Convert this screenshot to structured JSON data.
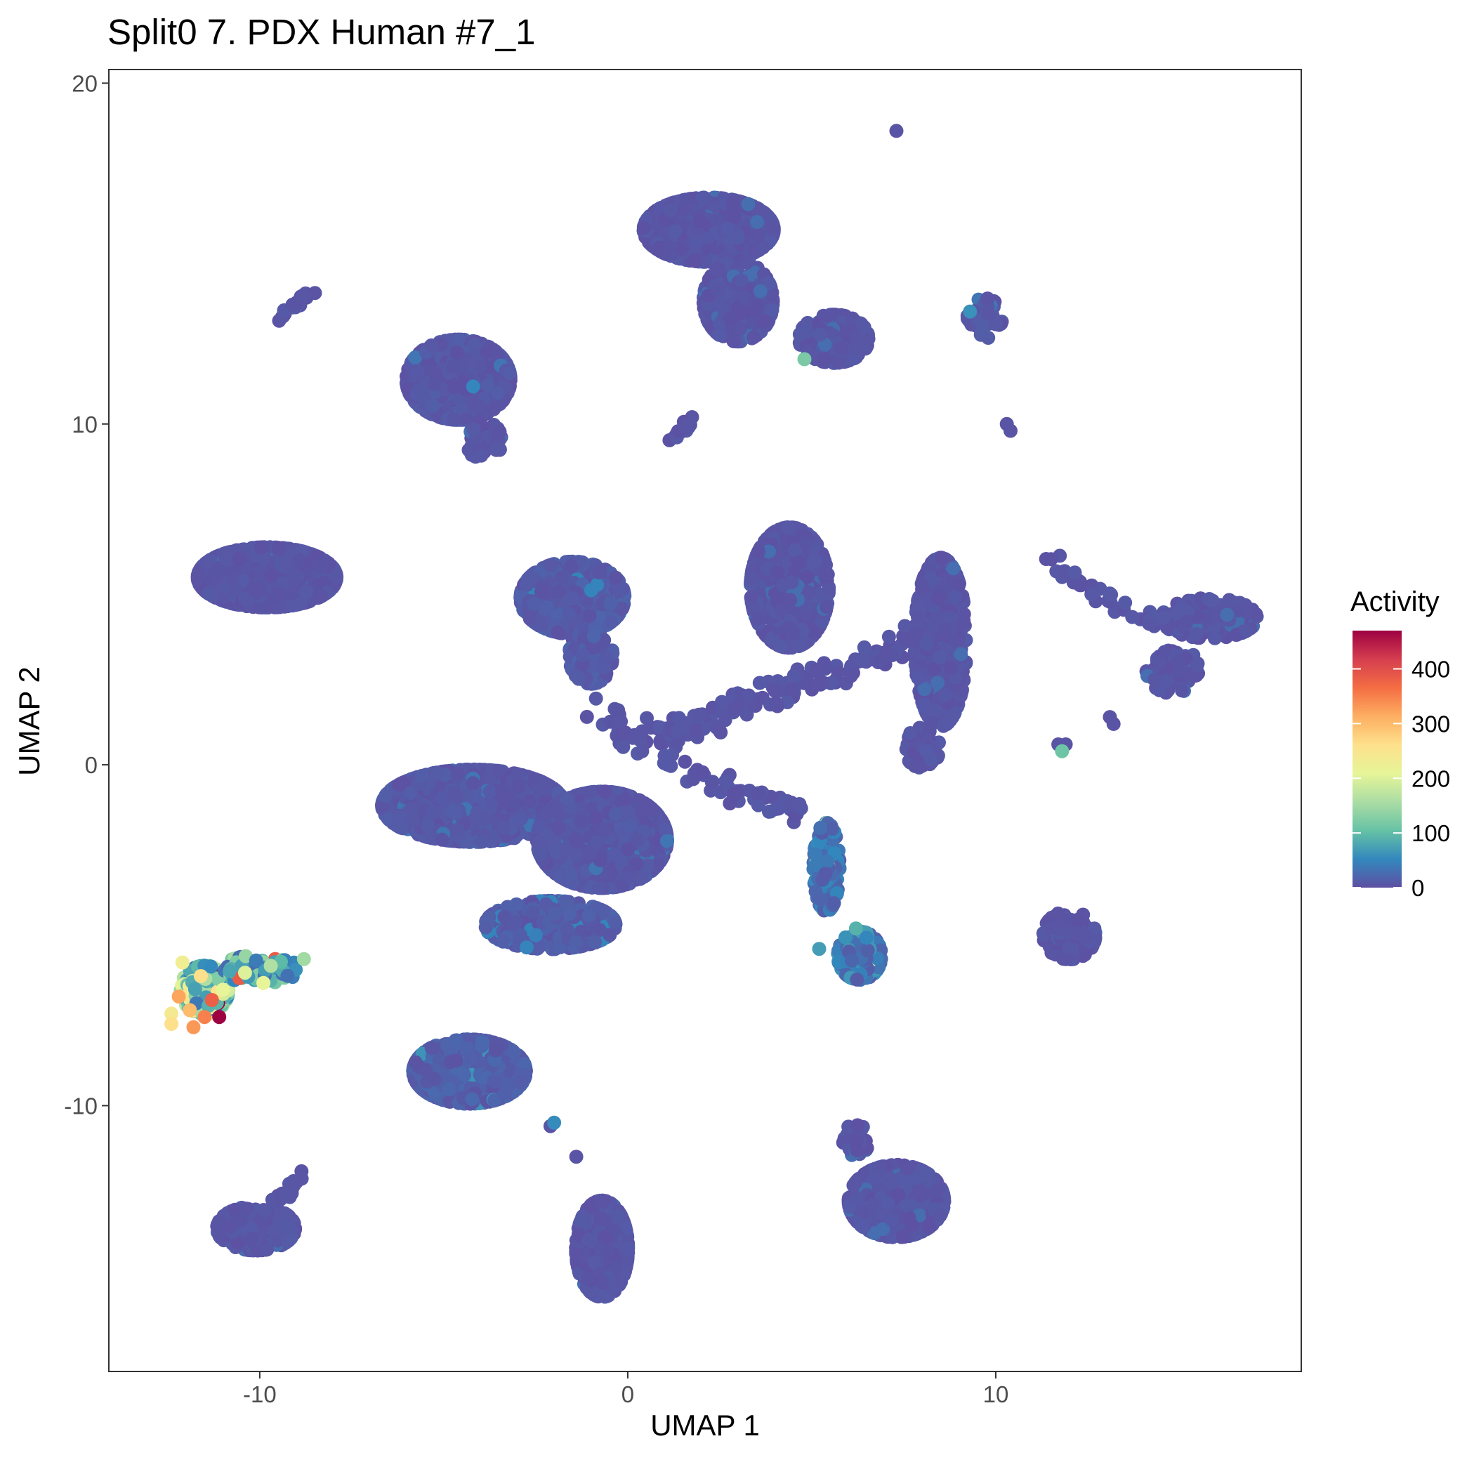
{
  "chart_data": {
    "type": "scatter",
    "title": "Split0 7. PDX Human #7_1",
    "xlabel": "UMAP 1",
    "ylabel": "UMAP 2",
    "xlim": [
      -14.1,
      18.3
    ],
    "ylim": [
      -17.8,
      20.4
    ],
    "x_ticks": [
      -10,
      0,
      10
    ],
    "y_ticks": [
      -10,
      0,
      10,
      20
    ],
    "grid": false,
    "legend": {
      "title": "Activity",
      "position": "right",
      "ticks": [
        0,
        100,
        200,
        300,
        400
      ],
      "range": [
        0,
        470
      ],
      "colorscale": [
        "#5e4fa2",
        "#3288bd",
        "#66c2a5",
        "#abdda4",
        "#e6f598",
        "#fee08b",
        "#fdae61",
        "#f46d43",
        "#d53e4f",
        "#9e0142"
      ]
    },
    "clusters": [
      {
        "x": 2.2,
        "y": 15.7,
        "sx": 1.5,
        "sy": 0.8,
        "n": 950,
        "act": 8
      },
      {
        "x": 3.0,
        "y": 13.6,
        "sx": 0.8,
        "sy": 1.0,
        "n": 300,
        "act": 8
      },
      {
        "x": 5.6,
        "y": 12.5,
        "sx": 0.8,
        "sy": 0.6,
        "n": 260,
        "act": 8
      },
      {
        "x": -4.6,
        "y": 11.3,
        "sx": 1.2,
        "sy": 1.0,
        "n": 650,
        "act": 10
      },
      {
        "x": -3.9,
        "y": 9.5,
        "sx": 0.4,
        "sy": 0.5,
        "n": 50,
        "act": 8
      },
      {
        "x": 9.7,
        "y": 13.1,
        "sx": 0.4,
        "sy": 0.5,
        "n": 55,
        "act": 10
      },
      {
        "x": -9.8,
        "y": 5.5,
        "sx": 1.6,
        "sy": 0.75,
        "n": 850,
        "act": 8
      },
      {
        "x": -1.5,
        "y": 4.9,
        "sx": 1.2,
        "sy": 0.9,
        "n": 600,
        "act": 14
      },
      {
        "x": -1.0,
        "y": 3.2,
        "sx": 0.5,
        "sy": 0.7,
        "n": 140,
        "act": 14
      },
      {
        "x": 4.4,
        "y": 5.2,
        "sx": 0.9,
        "sy": 1.5,
        "n": 560,
        "act": 8
      },
      {
        "x": 8.5,
        "y": 3.6,
        "sx": 0.6,
        "sy": 2.1,
        "n": 520,
        "act": 8
      },
      {
        "x": 8.0,
        "y": 0.5,
        "sx": 0.4,
        "sy": 0.5,
        "n": 80,
        "act": 8
      },
      {
        "x": 15.8,
        "y": 4.3,
        "sx": 1.1,
        "sy": 0.5,
        "n": 180,
        "act": 8
      },
      {
        "x": 14.8,
        "y": 2.8,
        "sx": 0.6,
        "sy": 0.6,
        "n": 80,
        "act": 8
      },
      {
        "x": -4.2,
        "y": -1.2,
        "sx": 2.1,
        "sy": 0.9,
        "n": 1500,
        "act": 10
      },
      {
        "x": -0.7,
        "y": -2.2,
        "sx": 1.5,
        "sy": 1.2,
        "n": 1300,
        "act": 10
      },
      {
        "x": -2.1,
        "y": -4.7,
        "sx": 1.5,
        "sy": 0.6,
        "n": 500,
        "act": 14
      },
      {
        "x": 5.4,
        "y": -3.0,
        "sx": 0.3,
        "sy": 1.1,
        "n": 160,
        "act": 40
      },
      {
        "x": 6.3,
        "y": -5.6,
        "sx": 0.5,
        "sy": 0.6,
        "n": 280,
        "act": 55
      },
      {
        "x": 12.0,
        "y": -5.0,
        "sx": 0.6,
        "sy": 0.6,
        "n": 170,
        "act": 8
      },
      {
        "x": -11.5,
        "y": -6.6,
        "sx": 0.55,
        "sy": 0.6,
        "n": 260,
        "act": 180
      },
      {
        "x": -10.0,
        "y": -6.0,
        "sx": 0.9,
        "sy": 0.35,
        "n": 120,
        "act": 110
      },
      {
        "x": -4.3,
        "y": -9.0,
        "sx": 1.3,
        "sy": 0.8,
        "n": 900,
        "act": 18
      },
      {
        "x": -10.1,
        "y": -13.6,
        "sx": 0.9,
        "sy": 0.55,
        "n": 300,
        "act": 8
      },
      {
        "x": -0.7,
        "y": -14.2,
        "sx": 0.6,
        "sy": 1.2,
        "n": 520,
        "act": 8
      },
      {
        "x": 7.3,
        "y": -12.8,
        "sx": 1.1,
        "sy": 0.9,
        "n": 600,
        "act": 8
      },
      {
        "x": 6.2,
        "y": -11.0,
        "sx": 0.3,
        "sy": 0.4,
        "n": 40,
        "act": 8
      }
    ],
    "paths": [
      {
        "points": [
          [
            -0.7,
            1.4
          ],
          [
            0.5,
            0.7
          ],
          [
            1.8,
            1.2
          ],
          [
            3.3,
            1.8
          ],
          [
            5.2,
            2.6
          ],
          [
            6.9,
            3.2
          ],
          [
            8.2,
            3.9
          ]
        ],
        "n": 170,
        "spread": 0.22,
        "act": 8
      },
      {
        "points": [
          [
            1.0,
            0.3
          ],
          [
            2.5,
            -0.6
          ],
          [
            3.7,
            -1.0
          ],
          [
            4.8,
            -1.4
          ]
        ],
        "n": 60,
        "spread": 0.18,
        "act": 8
      },
      {
        "points": [
          [
            11.4,
            6.1
          ],
          [
            12.8,
            5.0
          ],
          [
            14.2,
            4.2
          ],
          [
            15.2,
            4.3
          ]
        ],
        "n": 60,
        "spread": 0.12,
        "act": 8
      },
      {
        "points": [
          [
            -9.6,
            13.1
          ],
          [
            -9.0,
            13.6
          ],
          [
            -8.6,
            13.9
          ]
        ],
        "n": 22,
        "spread": 0.08,
        "act": 8
      },
      {
        "points": [
          [
            1.2,
            9.5
          ],
          [
            1.6,
            9.9
          ],
          [
            1.8,
            10.1
          ]
        ],
        "n": 15,
        "spread": 0.06,
        "act": 8
      },
      {
        "points": [
          [
            -9.8,
            -12.9
          ],
          [
            -9.2,
            -12.5
          ],
          [
            -8.8,
            -12.1
          ]
        ],
        "n": 15,
        "spread": 0.08,
        "act": 8
      }
    ],
    "points": [
      {
        "x": 7.3,
        "y": 18.6,
        "v": 5
      },
      {
        "x": 10.3,
        "y": 10.0,
        "v": 5
      },
      {
        "x": 10.4,
        "y": 9.8,
        "v": 5
      },
      {
        "x": 11.7,
        "y": 0.6,
        "v": 5
      },
      {
        "x": 11.9,
        "y": 0.6,
        "v": 5
      },
      {
        "x": 13.1,
        "y": 1.4,
        "v": 5
      },
      {
        "x": 13.2,
        "y": 1.2,
        "v": 5
      },
      {
        "x": -1.4,
        "y": -11.5,
        "v": 5
      },
      {
        "x": -2.1,
        "y": -10.6,
        "v": 5
      },
      {
        "x": 4.8,
        "y": 11.9,
        "v": 120
      },
      {
        "x": 9.3,
        "y": 13.3,
        "v": 60
      },
      {
        "x": 11.8,
        "y": 0.4,
        "v": 110
      },
      {
        "x": -4.2,
        "y": 11.1,
        "v": 50
      },
      {
        "x": -2.5,
        "y": -5.0,
        "v": 45
      },
      {
        "x": -2.0,
        "y": -10.5,
        "v": 55
      },
      {
        "x": 6.2,
        "y": -4.8,
        "v": 90
      },
      {
        "x": 5.2,
        "y": -5.4,
        "v": 70
      },
      {
        "x": -12.1,
        "y": -5.8,
        "v": 230
      },
      {
        "x": -11.6,
        "y": -6.2,
        "v": 260
      },
      {
        "x": -12.2,
        "y": -6.8,
        "v": 320
      },
      {
        "x": -11.9,
        "y": -7.2,
        "v": 300
      },
      {
        "x": -11.8,
        "y": -7.7,
        "v": 330
      },
      {
        "x": -11.5,
        "y": -7.4,
        "v": 350
      },
      {
        "x": -11.3,
        "y": -6.9,
        "v": 380
      },
      {
        "x": -11.1,
        "y": -7.4,
        "v": 470
      },
      {
        "x": -12.4,
        "y": -7.3,
        "v": 240
      },
      {
        "x": -10.4,
        "y": -6.1,
        "v": 200
      },
      {
        "x": -9.7,
        "y": -5.9,
        "v": 160
      },
      {
        "x": -9.9,
        "y": -6.4,
        "v": 210
      },
      {
        "x": -12.4,
        "y": -7.6,
        "v": 260
      },
      {
        "x": -11.0,
        "y": -6.6,
        "v": 210
      },
      {
        "x": -8.8,
        "y": -5.7,
        "v": 150
      }
    ]
  }
}
